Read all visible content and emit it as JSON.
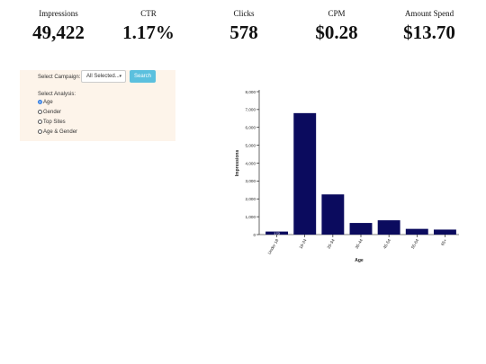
{
  "metrics": [
    {
      "label": "Impressions",
      "value": "49,422"
    },
    {
      "label": "CTR",
      "value": "1.17%"
    },
    {
      "label": "Clicks",
      "value": "578"
    },
    {
      "label": "CPM",
      "value": "$0.28"
    },
    {
      "label": "Amount Spend",
      "value": "$13.70"
    }
  ],
  "filters": {
    "campaign_label": "Select Campaign:",
    "campaign_value": "All Selected...",
    "search_label": "Search",
    "analysis_label": "Select Analysis:",
    "options": [
      {
        "label": "Age",
        "selected": true
      },
      {
        "label": "Gender",
        "selected": false
      },
      {
        "label": "Top Sites",
        "selected": false
      },
      {
        "label": "Age & Gender",
        "selected": false
      }
    ]
  },
  "chart_data": {
    "type": "bar",
    "categories": [
      "Under 18",
      "18-24",
      "25-34",
      "35-44",
      "45-54",
      "55-64",
      "65+"
    ],
    "values": [
      170,
      6800,
      2250,
      650,
      800,
      320,
      280
    ],
    "data_labels": [
      "170",
      "",
      "",
      "",
      "",
      "",
      ""
    ],
    "xlabel": "Age",
    "ylabel": "Impressions",
    "yticks": [
      "0",
      "1,000",
      "2,000",
      "3,000",
      "4,000",
      "5,000",
      "6,000",
      "7,000",
      "8,000"
    ],
    "ylim": [
      0,
      8000
    ],
    "bar_color": "#0b0b5e"
  }
}
